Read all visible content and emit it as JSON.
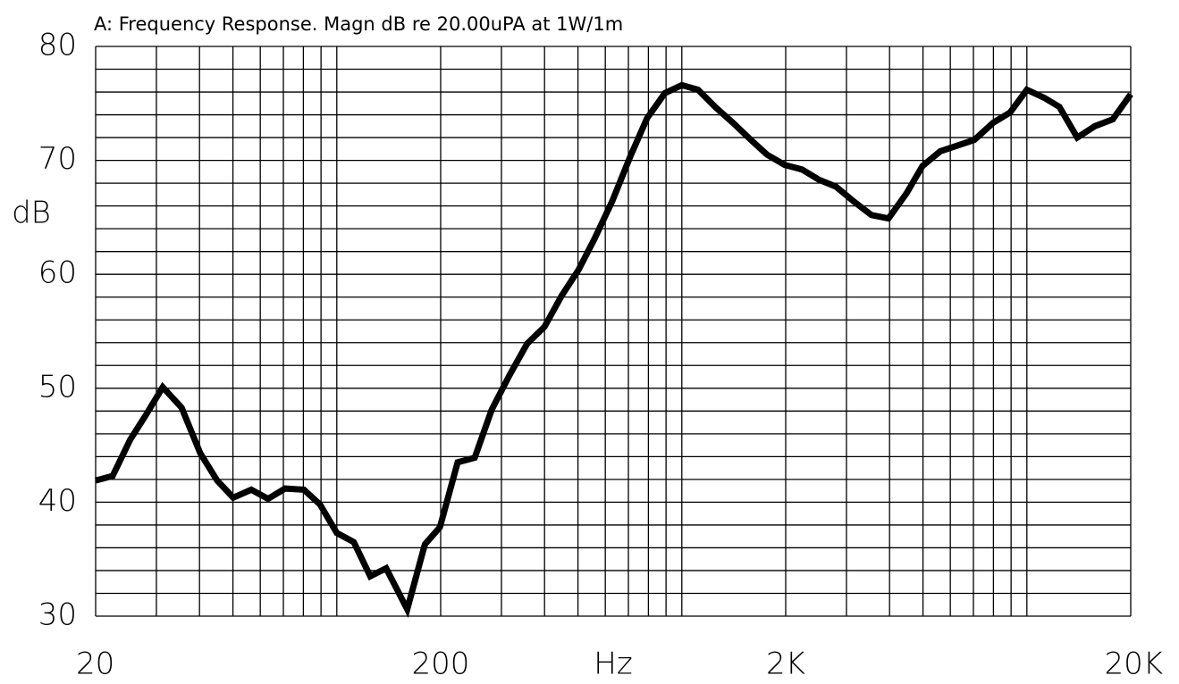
{
  "chart_data": {
    "type": "line",
    "title": "A: Frequency Response. Magn dB re 20.00uPA  at 1W/1m",
    "x_label": "Hz",
    "y_label": "dB",
    "x_scale": "log",
    "grid": true,
    "xlim": [
      20,
      20000
    ],
    "ylim": [
      30,
      80
    ],
    "xticks": [
      20,
      200,
      {
        "value": 2000,
        "label": "2K"
      },
      {
        "value": 20000,
        "label": "20K"
      }
    ],
    "yticks": [
      30,
      40,
      50,
      60,
      70,
      80
    ],
    "x_minor_grid": [
      30,
      40,
      50,
      60,
      70,
      80,
      90,
      100,
      300,
      400,
      500,
      600,
      700,
      800,
      900,
      1000,
      3000,
      4000,
      5000,
      6000,
      7000,
      8000,
      9000,
      10000
    ],
    "y_minor_grid": [
      32,
      34,
      36,
      38,
      42,
      44,
      46,
      48,
      52,
      54,
      56,
      58,
      62,
      64,
      66,
      68,
      72,
      74,
      76,
      78
    ],
    "x": [
      20,
      22.4,
      25.2,
      27.9,
      31.3,
      35.5,
      40.2,
      45,
      50.1,
      56.5,
      63.2,
      70.8,
      80.3,
      89.4,
      100,
      112,
      125,
      139,
      160,
      180,
      199,
      224,
      251,
      281,
      316,
      356,
      400,
      448,
      502,
      558,
      628,
      708,
      793,
      893,
      1000,
      1114,
      1248,
      1406,
      1585,
      1766,
      1988,
      2229,
      2496,
      2795,
      3148,
      3546,
      3972,
      4477,
      4982,
      5611,
      6287,
      7046,
      7985,
      8940,
      10000,
      11220,
      12420,
      14000,
      15740,
      17740,
      20000
    ],
    "series": [
      {
        "color": "#000000",
        "values": [
          41.9,
          42.3,
          45.5,
          47.6,
          50.1,
          48.3,
          44.3,
          41.9,
          40.4,
          41.1,
          40.3,
          41.2,
          41.1,
          39.8,
          37.3,
          36.5,
          33.5,
          34.2,
          30.6,
          36.3,
          37.8,
          43.5,
          43.9,
          48.1,
          51.1,
          53.9,
          55.4,
          58.1,
          60.4,
          63.1,
          66.4,
          70.3,
          73.7,
          75.9,
          76.6,
          76.2,
          74.7,
          73.3,
          71.8,
          70.5,
          69.6,
          69.2,
          68.3,
          67.7,
          66.4,
          65.2,
          64.9,
          67.1,
          69.5,
          70.8,
          71.3,
          71.8,
          73.3,
          74.2,
          76.2,
          75.5,
          74.7,
          72,
          73,
          73.6,
          75.8
        ]
      }
    ]
  }
}
